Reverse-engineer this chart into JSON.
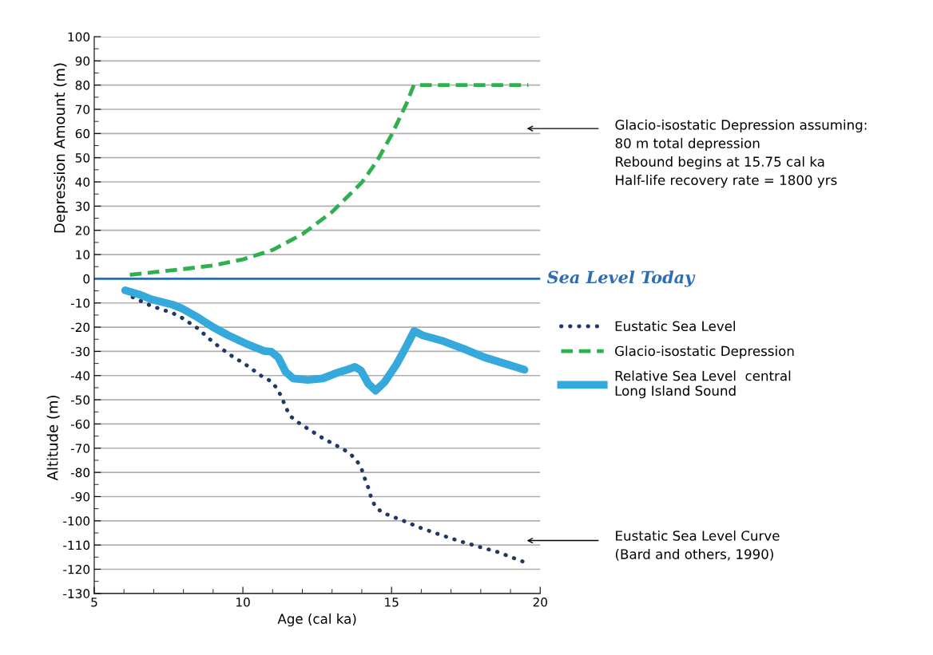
{
  "chart_data": {
    "type": "line",
    "xlabel": "Age (cal ka)",
    "ylabel": "Altitude (m)",
    "xlim": [
      5,
      20
    ],
    "xticks": [
      5,
      10,
      15,
      20
    ],
    "ylim": [
      -130,
      100
    ],
    "yticks": [
      -130,
      -120,
      -110,
      -100,
      -90,
      -80,
      -70,
      -60,
      -50,
      -40,
      -30,
      -20,
      -10,
      0,
      10,
      20,
      30,
      40,
      50,
      60,
      70,
      80,
      90,
      100
    ],
    "grid": "y",
    "legend": "right",
    "series": [
      {
        "name": "Eustatic Sea Level",
        "color": "#1f3864",
        "line_style": "dotted",
        "x": [
          6.29,
          6.93,
          7.58,
          7.87,
          8.47,
          8.96,
          9.51,
          10.1,
          10.65,
          10.95,
          11.14,
          11.3,
          11.44,
          11.59,
          11.84,
          12.14,
          12.68,
          13.28,
          13.57,
          13.82,
          13.99,
          14.09,
          14.22,
          14.32,
          14.46,
          14.71,
          15.36,
          15.95,
          16.65,
          17.24,
          17.93,
          18.53,
          19.52
        ],
        "values": [
          -7.6,
          -11.3,
          -13.9,
          -15.5,
          -20.4,
          -25.8,
          -31,
          -35.5,
          -40.4,
          -42.4,
          -45.2,
          -48.8,
          -53.1,
          -56.7,
          -59.2,
          -61.6,
          -65.8,
          -69.8,
          -71.9,
          -74.9,
          -78.5,
          -82.2,
          -86.4,
          -90.7,
          -94.3,
          -96.7,
          -99.8,
          -102.8,
          -105.8,
          -108.2,
          -110.7,
          -112.7,
          -117.3
        ]
      },
      {
        "name": "Glacio-isostatic Depression",
        "color": "#2eb04f",
        "line_style": "dashed",
        "x": [
          6.2,
          7,
          8,
          9,
          10,
          11,
          12,
          13,
          14,
          14.5,
          15,
          15.5,
          15.75,
          19.6
        ],
        "values": [
          1.6,
          2.7,
          4.0,
          5.5,
          8.0,
          11.9,
          18.4,
          27.6,
          39.8,
          48.4,
          59.4,
          72.3,
          80,
          80
        ]
      },
      {
        "name": "Relative Sea Level  central\nLong Island Sound",
        "color": "#35a8dc",
        "line_style": "solid",
        "x": [
          6.04,
          6.49,
          6.93,
          7.63,
          7.92,
          8.42,
          9.01,
          9.51,
          10.1,
          10.7,
          10.95,
          11.19,
          11.44,
          11.69,
          12.19,
          12.68,
          13.18,
          13.57,
          13.77,
          13.97,
          14.22,
          14.46,
          14.76,
          15.16,
          15.46,
          15.76,
          16.05,
          16.75,
          17.54,
          18.13,
          19.47
        ],
        "values": [
          -4.8,
          -6.4,
          -8.5,
          -10.7,
          -12.1,
          -15.5,
          -20.1,
          -23.4,
          -26.8,
          -29.8,
          -30.1,
          -32.5,
          -38.5,
          -41.2,
          -41.8,
          -41.2,
          -38.8,
          -37.3,
          -36.4,
          -37.9,
          -43.4,
          -46.2,
          -42.8,
          -35.5,
          -28.8,
          -21.6,
          -23.4,
          -25.8,
          -29.5,
          -32.5,
          -37.6
        ]
      }
    ],
    "ref_lines": [
      {
        "axis": "y",
        "value": 0,
        "label": "Sea Level Today",
        "color": "#2e6db4"
      }
    ],
    "annotations": [
      "Depression Amount (m)",
      "Glacio-isostatic Depression assuming:\n80 m total depression\nRebound begins at 15.75 cal ka\nHalf-life recovery rate = 1800 yrs",
      "Eustatic Sea Level Curve\n(Bard and others, 1990)"
    ]
  }
}
